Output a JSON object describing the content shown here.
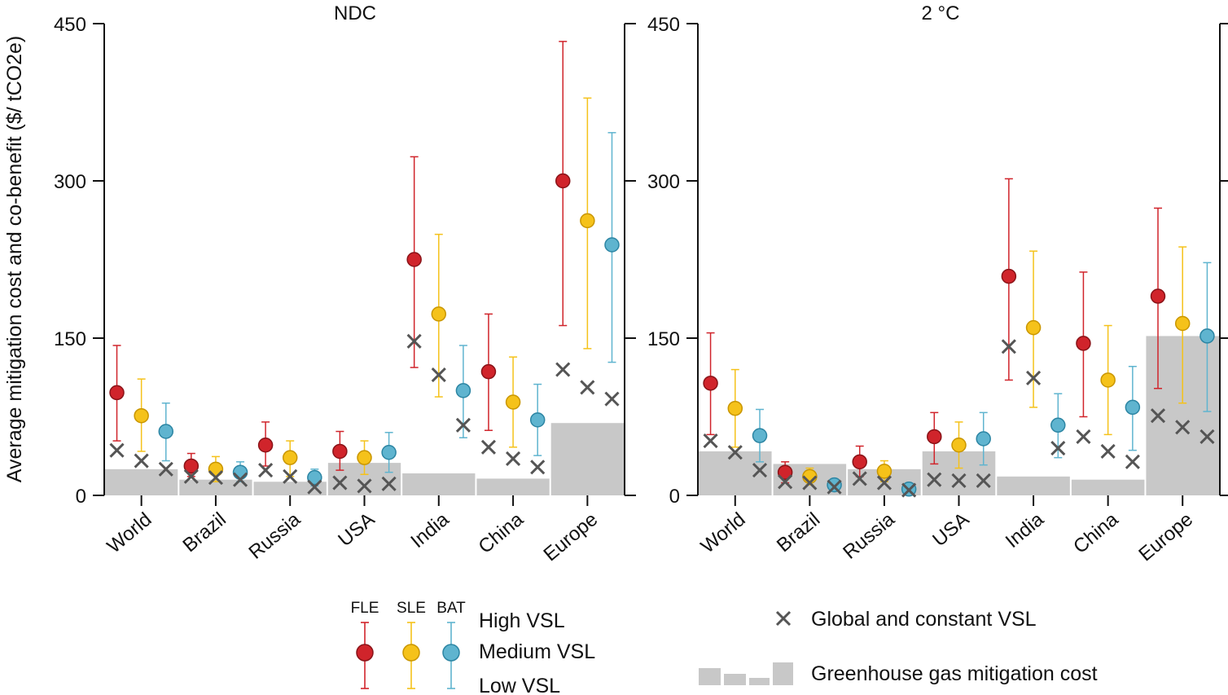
{
  "chart_data": [
    {
      "type": "scatter",
      "title": "NDC",
      "ylabel": "Average mitigation cost and co-benefit ($/ tCO2e)",
      "ylim": [
        0,
        450
      ],
      "yticks": [
        0,
        150,
        300,
        450
      ],
      "categories": [
        "World",
        "Brazil",
        "Russia",
        "USA",
        "India",
        "China",
        "Europe"
      ],
      "ghg_cost": [
        25,
        15,
        13,
        31,
        21,
        16,
        69
      ],
      "global_vsl": [
        [
          43,
          33,
          25
        ],
        [
          18,
          17,
          15
        ],
        [
          24,
          18,
          8
        ],
        [
          12,
          9,
          11
        ],
        [
          147,
          115,
          67
        ],
        [
          46,
          35,
          27
        ],
        [
          120,
          103,
          92
        ]
      ],
      "series": [
        {
          "name": "FLE",
          "color": "#d0242b",
          "medium": [
            98,
            28,
            48,
            42,
            225,
            118,
            300
          ],
          "low": [
            52,
            18,
            28,
            24,
            122,
            62,
            162
          ],
          "high": [
            143,
            40,
            70,
            61,
            323,
            173,
            433
          ]
        },
        {
          "name": "SLE",
          "color": "#f5c21a",
          "medium": [
            76,
            25,
            36,
            36,
            173,
            89,
            262
          ],
          "low": [
            42,
            13,
            18,
            20,
            94,
            46,
            140
          ],
          "high": [
            111,
            37,
            52,
            52,
            249,
            132,
            379
          ]
        },
        {
          "name": "BAT",
          "color": "#5fb4cf",
          "medium": [
            61,
            22,
            17,
            41,
            100,
            72,
            239
          ],
          "low": [
            33,
            13,
            9,
            22,
            55,
            38,
            127
          ],
          "high": [
            88,
            32,
            25,
            60,
            143,
            106,
            346
          ]
        }
      ]
    },
    {
      "type": "scatter",
      "title": "2 °C",
      "ylim": [
        0,
        450
      ],
      "yticks": [
        0,
        150,
        300,
        450
      ],
      "categories": [
        "World",
        "Brazil",
        "Russia",
        "USA",
        "India",
        "China",
        "Europe"
      ],
      "ghg_cost": [
        42,
        30,
        25,
        42,
        18,
        15,
        152
      ],
      "global_vsl": [
        [
          52,
          41,
          24
        ],
        [
          13,
          12,
          8
        ],
        [
          16,
          12,
          5
        ],
        [
          15,
          14,
          14
        ],
        [
          142,
          112,
          45
        ],
        [
          56,
          42,
          32
        ],
        [
          76,
          65,
          56
        ]
      ],
      "series": [
        {
          "name": "FLE",
          "color": "#d0242b",
          "medium": [
            107,
            22,
            32,
            56,
            209,
            145,
            190
          ],
          "low": [
            58,
            12,
            18,
            30,
            110,
            75,
            102
          ],
          "high": [
            155,
            32,
            47,
            79,
            302,
            213,
            274
          ]
        },
        {
          "name": "SLE",
          "color": "#f5c21a",
          "medium": [
            83,
            18,
            23,
            48,
            160,
            110,
            164
          ],
          "low": [
            46,
            10,
            13,
            26,
            84,
            58,
            88
          ],
          "high": [
            120,
            26,
            33,
            70,
            233,
            162,
            237
          ]
        },
        {
          "name": "BAT",
          "color": "#5fb4cf",
          "medium": [
            57,
            10,
            6,
            54,
            67,
            84,
            152
          ],
          "low": [
            32,
            5,
            3,
            29,
            36,
            43,
            80
          ],
          "high": [
            82,
            15,
            9,
            79,
            97,
            123,
            222
          ]
        }
      ]
    }
  ],
  "legend": {
    "group_labels": [
      "FLE",
      "SLE",
      "BAT"
    ],
    "vsl_levels": [
      "High VSL",
      "Medium VSL",
      "Low VSL"
    ],
    "global_vsl_label": "Global and constant VSL",
    "ghg_label": "Greenhouse gas mitigation cost"
  },
  "colors": {
    "bar": "#c8c8c8",
    "cross": "#555555",
    "axis": "#111111"
  }
}
